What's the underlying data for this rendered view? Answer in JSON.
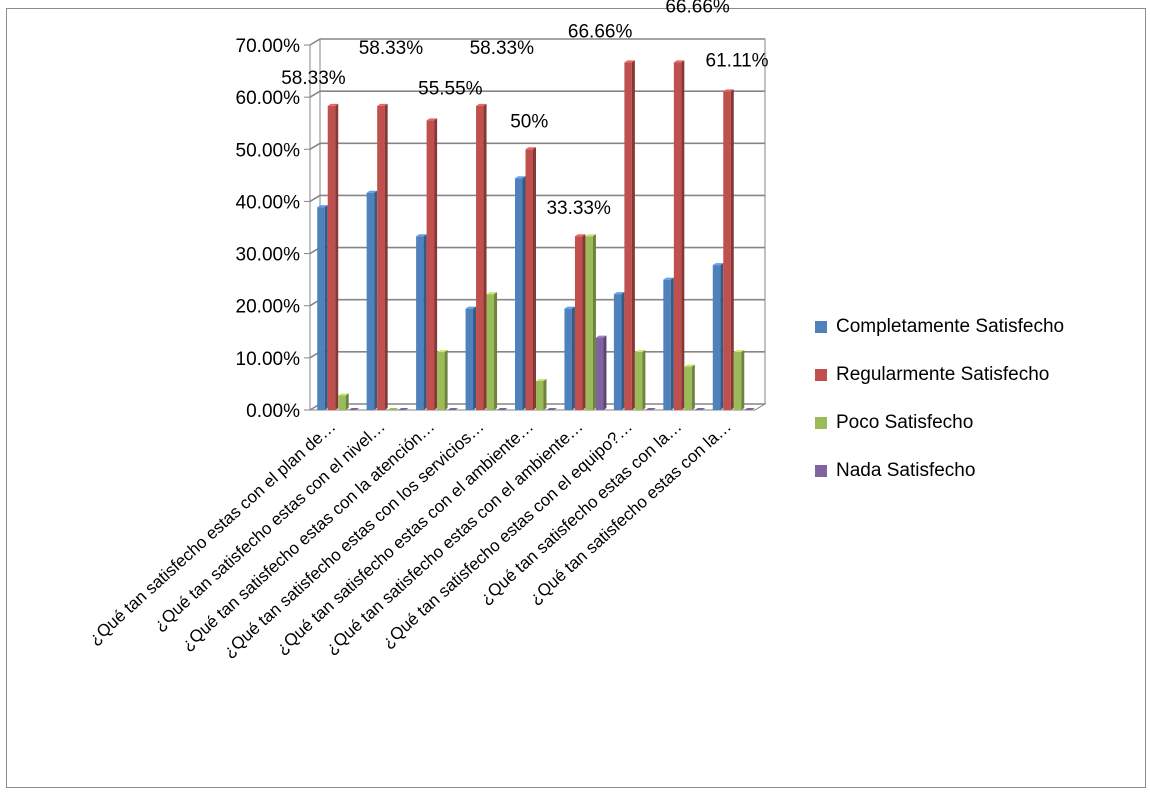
{
  "chart_data": {
    "type": "bar",
    "categories": [
      "¿Qué tan satisfecho estas con el plan de…",
      "¿Qué tan satisfecho estas con el nivel…",
      "¿Qué tan satisfecho estas con la atención…",
      "¿Qué tan satisfecho estas con los servicios…",
      "¿Qué tan satisfecho estas con el ambiente…",
      "¿Qué tan satisfecho estas con el ambiente…",
      "¿Qué tan satisfecho estas con el equipo?…",
      "¿Qué tan satisfecho estas con la…",
      "¿Qué tan satisfecho estas con la…"
    ],
    "series": [
      {
        "name": "Completamente Satisfecho",
        "color": "#4f81bd",
        "values": [
          0.389,
          0.4167,
          0.3333,
          0.1944,
          0.4444,
          0.1944,
          0.2222,
          0.25,
          0.2778
        ]
      },
      {
        "name": "Regularmente Satisfecho",
        "color": "#c0504d",
        "values": [
          0.5833,
          0.5833,
          0.5555,
          0.5833,
          0.5,
          0.3333,
          0.6666,
          0.6666,
          0.6111
        ]
      },
      {
        "name": "Poco Satisfecho",
        "color": "#9bbb59",
        "values": [
          0.0278,
          0.0,
          0.1111,
          0.2222,
          0.0556,
          0.3333,
          0.1111,
          0.0833,
          0.1111
        ]
      },
      {
        "name": "Nada Satisfecho",
        "color": "#8064a2",
        "values": [
          0.0,
          0.0,
          0.0,
          0.0,
          0.0,
          0.1389,
          0.0,
          0.0,
          0.0
        ]
      }
    ],
    "data_labels": [
      "58.33%",
      "58.33%",
      "55.55%",
      "58.33%",
      "50%",
      "33.33%",
      "66.66%",
      "66.66%",
      "61.11%"
    ],
    "yticks": [
      "0.00%",
      "10.00%",
      "20.00%",
      "30.00%",
      "40.00%",
      "50.00%",
      "60.00%",
      "70.00%"
    ],
    "ylim": [
      0,
      0.7
    ],
    "grid": true,
    "legend_position": "right",
    "title": "",
    "xlabel": "",
    "ylabel": ""
  }
}
